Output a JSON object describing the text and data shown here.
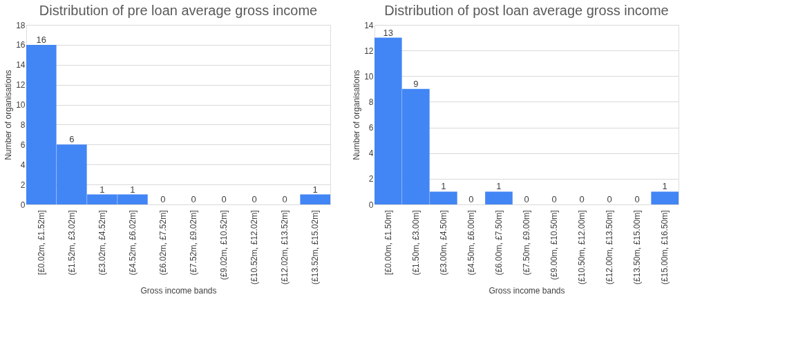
{
  "chart_data": [
    {
      "type": "bar",
      "title": "Distribution of pre loan average gross income",
      "xlabel": "Gross income bands",
      "ylabel": "Number of organisations",
      "categories": [
        "[£0.02m, £1.52m]",
        "(£1.52m, £3.02m]",
        "(£3.02m, £4.52m]",
        "(£4.52m, £6.02m]",
        "(£6.02m, £7.52m]",
        "(£7.52m, £9.02m]",
        "(£9.02m, £10.52m]",
        "(£10.52m, £12.02m]",
        "(£12.02m, £13.52m]",
        "(£13.52m, £15.02m]"
      ],
      "values": [
        16,
        6,
        1,
        1,
        0,
        0,
        0,
        0,
        0,
        1
      ],
      "color": "#4285f4",
      "ylim": [
        0,
        18
      ],
      "yticks": [
        0,
        2,
        4,
        6,
        8,
        10,
        12,
        14,
        16,
        18
      ],
      "grid": "y",
      "data_labels": true
    },
    {
      "type": "bar",
      "title": "Distribution of post loan average gross income",
      "xlabel": "Gross income bands",
      "ylabel": "Number of organisations",
      "categories": [
        "[£0.00m, £1.50m]",
        "(£1.50m, £3.00m]",
        "(£3.00m, £4.50m]",
        "(£4.50m, £6.00m]",
        "(£6.00m, £7.50m]",
        "(£7.50m, £9.00m]",
        "(£9.00m, £10.50m]",
        "(£10.50m, £12.00m]",
        "(£12.00m, £13.50m]",
        "(£13.50m, £15.00m]",
        "(£15.00m, £16.50m]"
      ],
      "values": [
        13,
        9,
        1,
        0,
        1,
        0,
        0,
        0,
        0,
        0,
        1
      ],
      "color": "#4285f4",
      "ylim": [
        0,
        14
      ],
      "yticks": [
        0,
        2,
        4,
        6,
        8,
        10,
        12,
        14
      ],
      "grid": "y",
      "data_labels": true
    }
  ]
}
